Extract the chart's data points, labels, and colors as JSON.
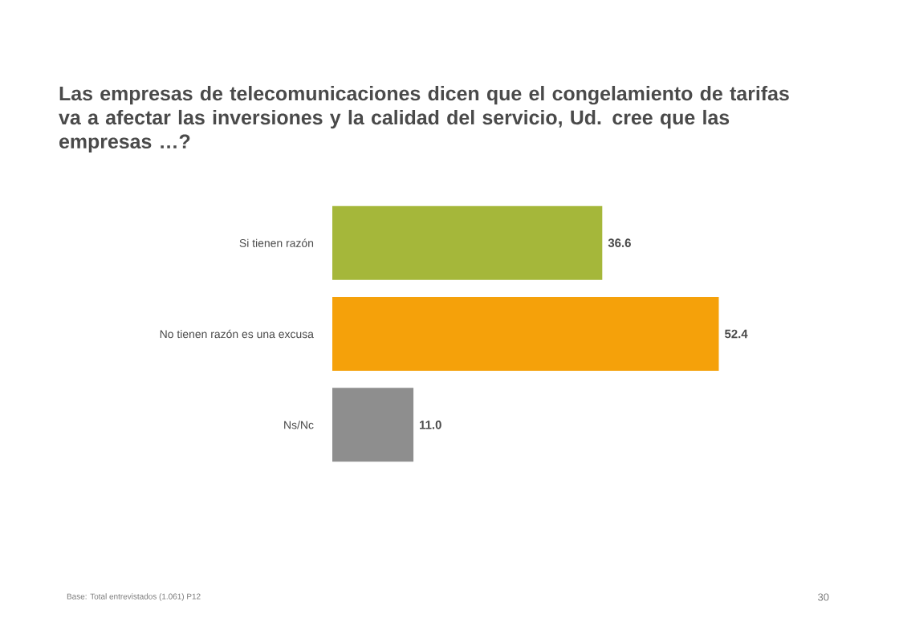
{
  "chart_data": {
    "type": "bar",
    "orientation": "horizontal",
    "title": "Las empresas de telecomunicaciones dicen que el congelamiento de tarifas va a afectar las inversiones y la calidad del servicio, Ud. cree que las empresas …?",
    "categories": [
      "Si tienen razón",
      "No tienen razón es una excusa",
      "Ns/Nc"
    ],
    "values": [
      36.6,
      52.4,
      11.0
    ],
    "colors": [
      "#a5b73a",
      "#f5a10a",
      "#8e8e8e"
    ],
    "value_labels": [
      "36.6",
      "52.4",
      "11.0"
    ],
    "annotations": [
      "Base: Total entrevistados (1.061) P12",
      "30"
    ]
  }
}
